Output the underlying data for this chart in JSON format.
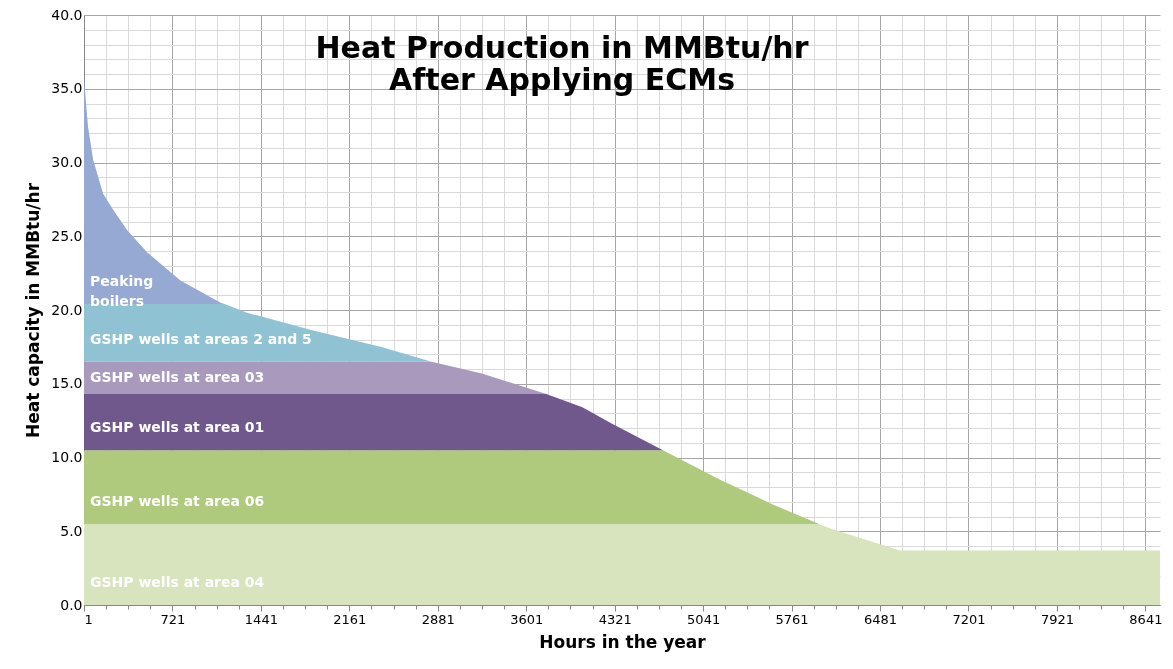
{
  "chart_data": {
    "type": "area",
    "title": "Heat Production in MMBtu/hr\nAfter Applying ECMs",
    "xlabel": "Hours in the year",
    "ylabel": "Heat capacity in MMBtu/hr",
    "stacked": true,
    "grid": true,
    "x": [
      1,
      34,
      75,
      156,
      238,
      353,
      516,
      786,
      1113,
      1145,
      1334,
      1874,
      2422,
      2831,
      3240,
      3764,
      4058,
      4296,
      4714,
      5179,
      5612,
      5985,
      6071,
      6643,
      8760
    ],
    "series": [
      {
        "name": "GSHP wells at area 04",
        "color": "#d7e4bd",
        "values": [
          5.5,
          5.5,
          5.5,
          5.5,
          5.5,
          5.5,
          5.5,
          5.5,
          5.5,
          5.5,
          5.5,
          5.5,
          5.5,
          5.5,
          5.5,
          5.5,
          5.5,
          5.5,
          5.5,
          5.5,
          5.5,
          5.5,
          5.2,
          3.7,
          3.7
        ]
      },
      {
        "name": "GSHP wells at area 06",
        "color": "#afc97d",
        "values": [
          5.0,
          5.0,
          5.0,
          5.0,
          5.0,
          5.0,
          5.0,
          5.0,
          5.0,
          5.0,
          5.0,
          5.0,
          5.0,
          5.0,
          5.0,
          5.0,
          5.0,
          5.0,
          5.0,
          3.0,
          1.3,
          0,
          0,
          0,
          0
        ]
      },
      {
        "name": "GSHP wells at area 01",
        "color": "#70578c",
        "values": [
          3.8,
          3.8,
          3.8,
          3.8,
          3.8,
          3.8,
          3.8,
          3.8,
          3.8,
          3.8,
          3.8,
          3.8,
          3.8,
          3.8,
          3.8,
          3.8,
          2.9,
          1.8,
          0,
          0,
          0,
          0,
          0,
          0,
          0
        ]
      },
      {
        "name": "GSHP wells at area 03",
        "color": "#a99abd",
        "values": [
          2.2,
          2.2,
          2.2,
          2.2,
          2.2,
          2.2,
          2.2,
          2.2,
          2.2,
          2.2,
          2.2,
          2.2,
          2.2,
          2.2,
          1.4,
          0,
          0,
          0,
          0,
          0,
          0,
          0,
          0,
          0,
          0
        ]
      },
      {
        "name": "GSHP wells at areas 2 and 5",
        "color": "#8fc2d3",
        "values": [
          3.9,
          3.9,
          3.9,
          3.9,
          3.9,
          3.9,
          3.9,
          3.9,
          3.9,
          3.9,
          3.3,
          2.1,
          1.0,
          0,
          0,
          0,
          0,
          0,
          0,
          0,
          0,
          0,
          0,
          0,
          0
        ]
      },
      {
        "name": "Peaking boilers",
        "color": "#95a9d3",
        "values": [
          15.3,
          12.0,
          9.8,
          7.5,
          6.4,
          5.0,
          3.5,
          1.6,
          0.1,
          0,
          0,
          0,
          0,
          0,
          0,
          0,
          0,
          0,
          0,
          0,
          0,
          0,
          0,
          0,
          0
        ]
      }
    ],
    "xlim": [
      1,
      8760
    ],
    "xticks": [
      1,
      {
        "value": 181,
        "label": null
      },
      {
        "value": 361,
        "label": null
      },
      {
        "value": 541,
        "label": null
      },
      721,
      {
        "value": 901,
        "label": null
      },
      {
        "value": 1081,
        "label": null
      },
      {
        "value": 1261,
        "label": null
      },
      1441,
      {
        "value": 1621,
        "label": null
      },
      {
        "value": 1801,
        "label": null
      },
      {
        "value": 1981,
        "label": null
      },
      2161,
      {
        "value": 2341,
        "label": null
      },
      {
        "value": 2521,
        "label": null
      },
      {
        "value": 2701,
        "label": null
      },
      2881,
      {
        "value": 3061,
        "label": null
      },
      {
        "value": 3241,
        "label": null
      },
      {
        "value": 3421,
        "label": null
      },
      3601,
      {
        "value": 3781,
        "label": null
      },
      {
        "value": 3961,
        "label": null
      },
      {
        "value": 4141,
        "label": null
      },
      4321,
      {
        "value": 4501,
        "label": null
      },
      {
        "value": 4681,
        "label": null
      },
      {
        "value": 4861,
        "label": null
      },
      5041,
      {
        "value": 5221,
        "label": null
      },
      {
        "value": 5401,
        "label": null
      },
      {
        "value": 5581,
        "label": null
      },
      5761,
      {
        "value": 5941,
        "label": null
      },
      {
        "value": 6121,
        "label": null
      },
      {
        "value": 6301,
        "label": null
      },
      6481,
      {
        "value": 6661,
        "label": null
      },
      {
        "value": 6841,
        "label": null
      },
      {
        "value": 7021,
        "label": null
      },
      7201,
      {
        "value": 7381,
        "label": null
      },
      {
        "value": 7561,
        "label": null
      },
      {
        "value": 7741,
        "label": null
      },
      7921,
      {
        "value": 8101,
        "label": null
      },
      {
        "value": 8281,
        "label": null
      },
      {
        "value": 8461,
        "label": null
      },
      8641
    ],
    "ylim": [
      0,
      40
    ],
    "yticks": [
      {
        "value": 0,
        "label": "0.0"
      },
      {
        "value": 1,
        "label": null
      },
      {
        "value": 2,
        "label": null
      },
      {
        "value": 3,
        "label": null
      },
      {
        "value": 4,
        "label": null
      },
      {
        "value": 5,
        "label": "5.0"
      },
      {
        "value": 6,
        "label": null
      },
      {
        "value": 7,
        "label": null
      },
      {
        "value": 8,
        "label": null
      },
      {
        "value": 9,
        "label": null
      },
      {
        "value": 10,
        "label": "10.0"
      },
      {
        "value": 11,
        "label": null
      },
      {
        "value": 12,
        "label": null
      },
      {
        "value": 13,
        "label": null
      },
      {
        "value": 14,
        "label": null
      },
      {
        "value": 15,
        "label": "15.0"
      },
      {
        "value": 16,
        "label": null
      },
      {
        "value": 17,
        "label": null
      },
      {
        "value": 18,
        "label": null
      },
      {
        "value": 19,
        "label": null
      },
      {
        "value": 20,
        "label": "20.0"
      },
      {
        "value": 21,
        "label": null
      },
      {
        "value": 22,
        "label": null
      },
      {
        "value": 23,
        "label": null
      },
      {
        "value": 24,
        "label": null
      },
      {
        "value": 25,
        "label": "25.0"
      },
      {
        "value": 26,
        "label": null
      },
      {
        "value": 27,
        "label": null
      },
      {
        "value": 28,
        "label": null
      },
      {
        "value": 29,
        "label": null
      },
      {
        "value": 30,
        "label": "30.0"
      },
      {
        "value": 31,
        "label": null
      },
      {
        "value": 32,
        "label": null
      },
      {
        "value": 33,
        "label": null
      },
      {
        "value": 34,
        "label": null
      },
      {
        "value": 35,
        "label": "35.0"
      },
      {
        "value": 36,
        "label": null
      },
      {
        "value": 37,
        "label": null
      },
      {
        "value": 38,
        "label": null
      },
      {
        "value": 39,
        "label": null
      },
      {
        "value": 40,
        "label": "40.0"
      }
    ]
  }
}
